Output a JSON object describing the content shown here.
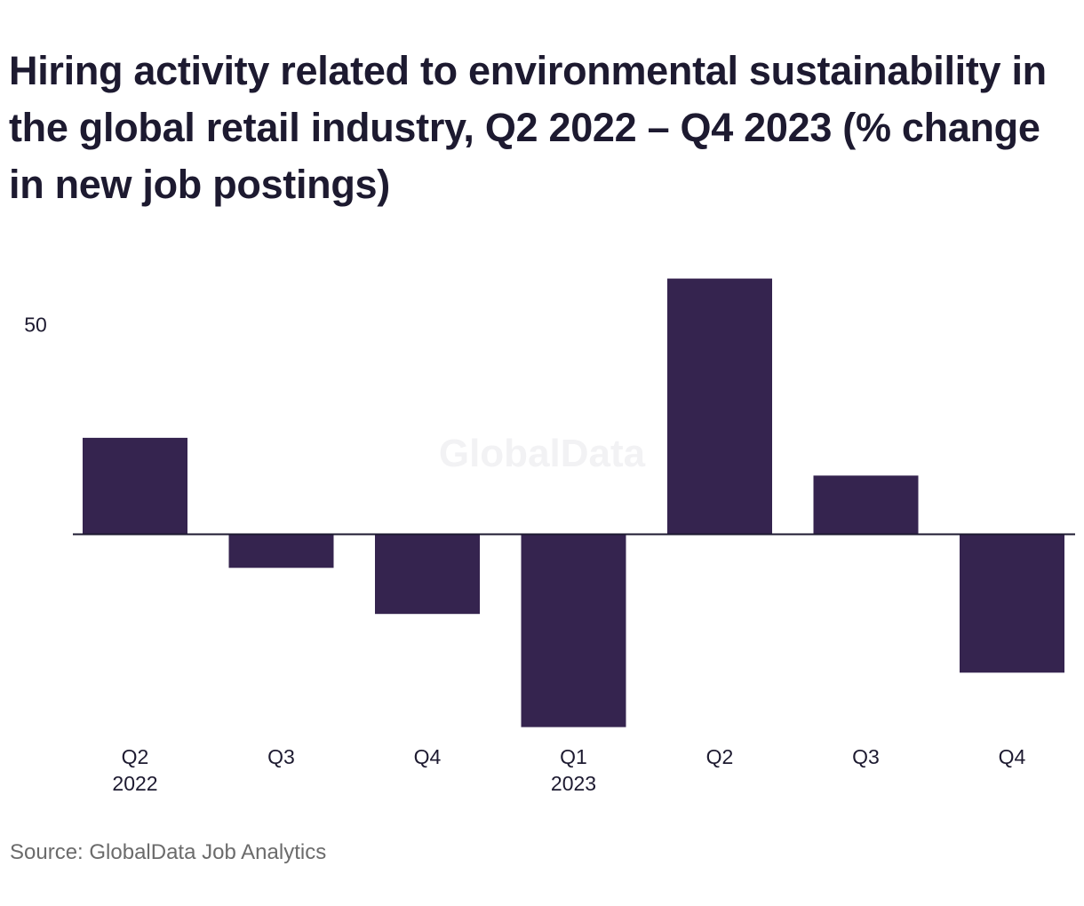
{
  "chart_data": {
    "type": "bar",
    "title": "Hiring activity related to environmental sustainability in the global retail industry, Q2 2022 – Q4 2023 (% change in new job postings)",
    "categories": [
      {
        "label": "Q2",
        "year": "2022"
      },
      {
        "label": "Q3",
        "year": ""
      },
      {
        "label": "Q4",
        "year": ""
      },
      {
        "label": "Q1",
        "year": "2023"
      },
      {
        "label": "Q2",
        "year": ""
      },
      {
        "label": "Q3",
        "year": ""
      },
      {
        "label": "Q4",
        "year": ""
      }
    ],
    "values": [
      23,
      -8,
      -19,
      -46,
      61,
      14,
      -33
    ],
    "yticks": [
      50
    ],
    "ylim": [
      -46,
      61
    ],
    "xlabel": "",
    "ylabel": "",
    "grid": false,
    "legend": "none",
    "bar_color": "#35244f",
    "zero_line_color": "#1d1a30"
  },
  "watermark": "GlobalData",
  "source": "Source: GlobalData Job Analytics"
}
